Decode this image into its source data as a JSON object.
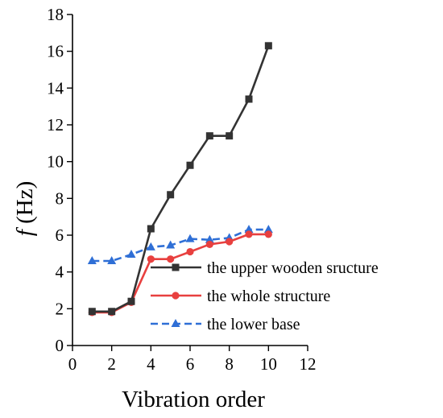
{
  "chart_data": {
    "type": "line",
    "title": "",
    "xlabel": "Vibration order",
    "ylabel_italic": "f",
    "ylabel_unit": " (Hz)",
    "xlim": [
      0,
      12
    ],
    "ylim": [
      0,
      18
    ],
    "xticks": [
      0,
      2,
      4,
      6,
      8,
      10,
      12
    ],
    "yticks": [
      0,
      2,
      4,
      6,
      8,
      10,
      12,
      14,
      16,
      18
    ],
    "grid": false,
    "legend_position": "bottom-right",
    "series": [
      {
        "name": "the upper wooden sructure",
        "color": "#333333",
        "marker": "square",
        "dash": "solid",
        "x": [
          1,
          2,
          3,
          4,
          5,
          6,
          7,
          8,
          9,
          10
        ],
        "y": [
          1.85,
          1.85,
          2.4,
          6.35,
          8.2,
          9.8,
          11.4,
          11.4,
          13.4,
          16.3
        ]
      },
      {
        "name": "the whole structure",
        "color": "#e8403f",
        "marker": "circle",
        "dash": "solid",
        "x": [
          1,
          2,
          3,
          4,
          5,
          6,
          7,
          8,
          9,
          10
        ],
        "y": [
          1.8,
          1.8,
          2.35,
          4.7,
          4.7,
          5.1,
          5.5,
          5.65,
          6.05,
          6.05
        ]
      },
      {
        "name": "the lower base",
        "color": "#2f6fd6",
        "marker": "triangle",
        "dash": "dashed",
        "x": [
          1,
          2,
          3,
          4,
          5,
          6,
          7,
          8,
          9,
          10
        ],
        "y": [
          4.6,
          4.6,
          4.95,
          5.35,
          5.45,
          5.8,
          5.75,
          5.85,
          6.3,
          6.3
        ]
      }
    ]
  }
}
